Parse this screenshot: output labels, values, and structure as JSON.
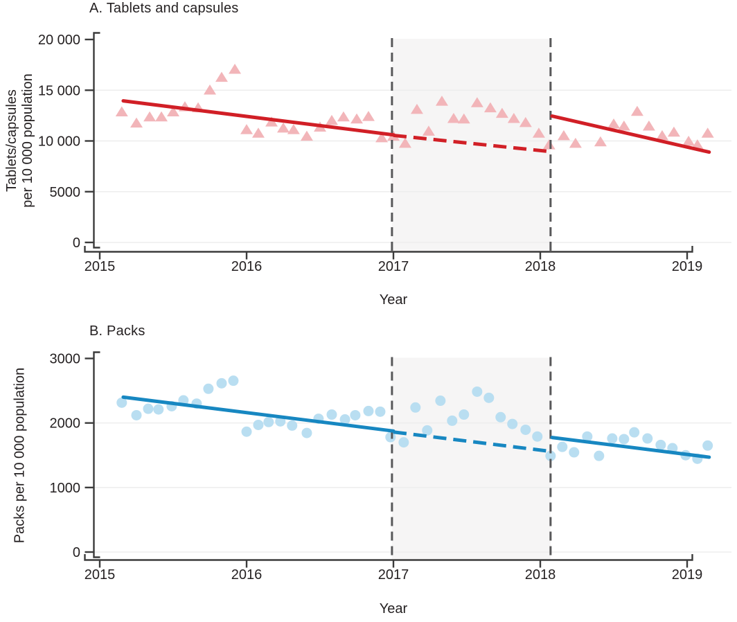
{
  "figure": {
    "kind": "interrupted-time-series-figure",
    "x_label": "Year",
    "interruption_period": {
      "from": "2017.0",
      "to": "2018.07"
    }
  },
  "style": {
    "background": "#ffffff",
    "text_color": "#231f20",
    "axis_color": "#3b3b3b",
    "grid_color": "#ededed",
    "band_color": "#f6f5f5",
    "interruption_dash_color": "#58585a",
    "panel_a_point_color": "#f2b5b9",
    "panel_a_line_color": "#d11f26",
    "panel_b_point_color": "#b9def1",
    "panel_b_line_color": "#1787c1"
  },
  "chart_data": [
    {
      "type": "scatter",
      "title": "A. Tablets and capsules",
      "xlabel": "Year",
      "ylabel": "Tablets/capsules per 10 000 population",
      "ylabel_lines": [
        "Tablets/capsules",
        "per 10 000 population"
      ],
      "marker": "triangle",
      "point_color": "#f2b5b9",
      "line_color": "#d11f26",
      "xlim": [
        2014.9,
        2019.3
      ],
      "ylim": [
        0,
        20000
      ],
      "grid": "horizontal-faint",
      "legend": "none",
      "x_ticks": [
        {
          "value": 2015,
          "label": "2015"
        },
        {
          "value": 2016,
          "label": "2016"
        },
        {
          "value": 2017,
          "label": "2017"
        },
        {
          "value": 2018,
          "label": "2018"
        },
        {
          "value": 2019,
          "label": "2019"
        }
      ],
      "y_ticks": [
        {
          "value": 0,
          "label": "0"
        },
        {
          "value": 5000,
          "label": "5000"
        },
        {
          "value": 10000,
          "label": "10 000"
        },
        {
          "value": 15000,
          "label": "15 000"
        },
        {
          "value": 20000,
          "label": "20 000"
        }
      ],
      "interruption_band": {
        "x_start": 2016.99,
        "x_end": 2018.07
      },
      "points": [
        [
          2015.15,
          12800
        ],
        [
          2015.25,
          11700
        ],
        [
          2015.34,
          12300
        ],
        [
          2015.42,
          12300
        ],
        [
          2015.5,
          12800
        ],
        [
          2015.58,
          13300
        ],
        [
          2015.67,
          13200
        ],
        [
          2015.75,
          14950
        ],
        [
          2015.83,
          16200
        ],
        [
          2015.92,
          17000
        ],
        [
          2016.0,
          11050
        ],
        [
          2016.08,
          10700
        ],
        [
          2016.17,
          11800
        ],
        [
          2016.25,
          11200
        ],
        [
          2016.32,
          11050
        ],
        [
          2016.41,
          10400
        ],
        [
          2016.5,
          11300
        ],
        [
          2016.58,
          11950
        ],
        [
          2016.66,
          12300
        ],
        [
          2016.75,
          12100
        ],
        [
          2016.83,
          12350
        ],
        [
          2016.92,
          10250
        ],
        [
          2017.0,
          10400
        ],
        [
          2017.08,
          9700
        ],
        [
          2017.16,
          13050
        ],
        [
          2017.24,
          10900
        ],
        [
          2017.33,
          13850
        ],
        [
          2017.41,
          12150
        ],
        [
          2017.48,
          12100
        ],
        [
          2017.57,
          13700
        ],
        [
          2017.66,
          13200
        ],
        [
          2017.74,
          12650
        ],
        [
          2017.82,
          12150
        ],
        [
          2017.9,
          11750
        ],
        [
          2017.99,
          10700
        ],
        [
          2018.06,
          9550
        ],
        [
          2018.16,
          10450
        ],
        [
          2018.24,
          9700
        ],
        [
          2018.41,
          9850
        ],
        [
          2018.5,
          11600
        ],
        [
          2018.57,
          11400
        ],
        [
          2018.66,
          12850
        ],
        [
          2018.74,
          11400
        ],
        [
          2018.83,
          10450
        ],
        [
          2018.91,
          10800
        ],
        [
          2019.01,
          9900
        ],
        [
          2019.07,
          9550
        ],
        [
          2019.14,
          10700
        ]
      ],
      "trend_segments": [
        {
          "style": "solid",
          "x1": 2015.16,
          "y1": 13950,
          "x2": 2017.0,
          "y2": 10600
        },
        {
          "style": "dashed",
          "x1": 2017.0,
          "y1": 10550,
          "x2": 2018.07,
          "y2": 8950
        },
        {
          "style": "solid",
          "x1": 2018.08,
          "y1": 12450,
          "x2": 2019.15,
          "y2": 8900
        }
      ]
    },
    {
      "type": "scatter",
      "title": "B. Packs",
      "xlabel": "Year",
      "ylabel": "Packs per 10 000 population",
      "ylabel_lines": [
        "Packs per 10 000 population"
      ],
      "marker": "circle",
      "point_color": "#b9def1",
      "line_color": "#1787c1",
      "xlim": [
        2014.9,
        2019.3
      ],
      "ylim": [
        0,
        3000
      ],
      "grid": "horizontal-faint",
      "legend": "none",
      "x_ticks": [
        {
          "value": 2015,
          "label": "2015"
        },
        {
          "value": 2016,
          "label": "2016"
        },
        {
          "value": 2017,
          "label": "2017"
        },
        {
          "value": 2018,
          "label": "2018"
        },
        {
          "value": 2019,
          "label": "2019"
        }
      ],
      "y_ticks": [
        {
          "value": 0,
          "label": "0"
        },
        {
          "value": 1000,
          "label": "1000"
        },
        {
          "value": 2000,
          "label": "2000"
        },
        {
          "value": 3000,
          "label": "3000"
        }
      ],
      "interruption_band": {
        "x_start": 2016.99,
        "x_end": 2018.07
      },
      "points": [
        [
          2015.15,
          2315
        ],
        [
          2015.25,
          2120
        ],
        [
          2015.33,
          2220
        ],
        [
          2015.4,
          2210
        ],
        [
          2015.49,
          2260
        ],
        [
          2015.57,
          2350
        ],
        [
          2015.66,
          2300
        ],
        [
          2015.74,
          2530
        ],
        [
          2015.83,
          2615
        ],
        [
          2015.91,
          2655
        ],
        [
          2016.0,
          1865
        ],
        [
          2016.08,
          1970
        ],
        [
          2016.15,
          2015
        ],
        [
          2016.23,
          2025
        ],
        [
          2016.31,
          1960
        ],
        [
          2016.41,
          1845
        ],
        [
          2016.49,
          2065
        ],
        [
          2016.58,
          2130
        ],
        [
          2016.67,
          2055
        ],
        [
          2016.74,
          2120
        ],
        [
          2016.83,
          2185
        ],
        [
          2016.91,
          2175
        ],
        [
          2016.98,
          1780
        ],
        [
          2017.07,
          1700
        ],
        [
          2017.15,
          2240
        ],
        [
          2017.23,
          1885
        ],
        [
          2017.32,
          2345
        ],
        [
          2017.4,
          2035
        ],
        [
          2017.48,
          2130
        ],
        [
          2017.57,
          2485
        ],
        [
          2017.65,
          2390
        ],
        [
          2017.73,
          2090
        ],
        [
          2017.81,
          1985
        ],
        [
          2017.9,
          1895
        ],
        [
          2017.98,
          1790
        ],
        [
          2018.07,
          1490
        ],
        [
          2018.15,
          1630
        ],
        [
          2018.23,
          1545
        ],
        [
          2018.32,
          1790
        ],
        [
          2018.4,
          1490
        ],
        [
          2018.49,
          1760
        ],
        [
          2018.57,
          1750
        ],
        [
          2018.64,
          1855
        ],
        [
          2018.73,
          1760
        ],
        [
          2018.82,
          1660
        ],
        [
          2018.9,
          1610
        ],
        [
          2018.99,
          1500
        ],
        [
          2019.07,
          1445
        ],
        [
          2019.14,
          1650
        ]
      ],
      "trend_segments": [
        {
          "style": "solid",
          "x1": 2015.16,
          "y1": 2400,
          "x2": 2017.0,
          "y2": 1875
        },
        {
          "style": "dashed",
          "x1": 2017.0,
          "y1": 1860,
          "x2": 2018.07,
          "y2": 1560
        },
        {
          "style": "solid",
          "x1": 2018.08,
          "y1": 1775,
          "x2": 2019.15,
          "y2": 1470
        }
      ]
    }
  ]
}
